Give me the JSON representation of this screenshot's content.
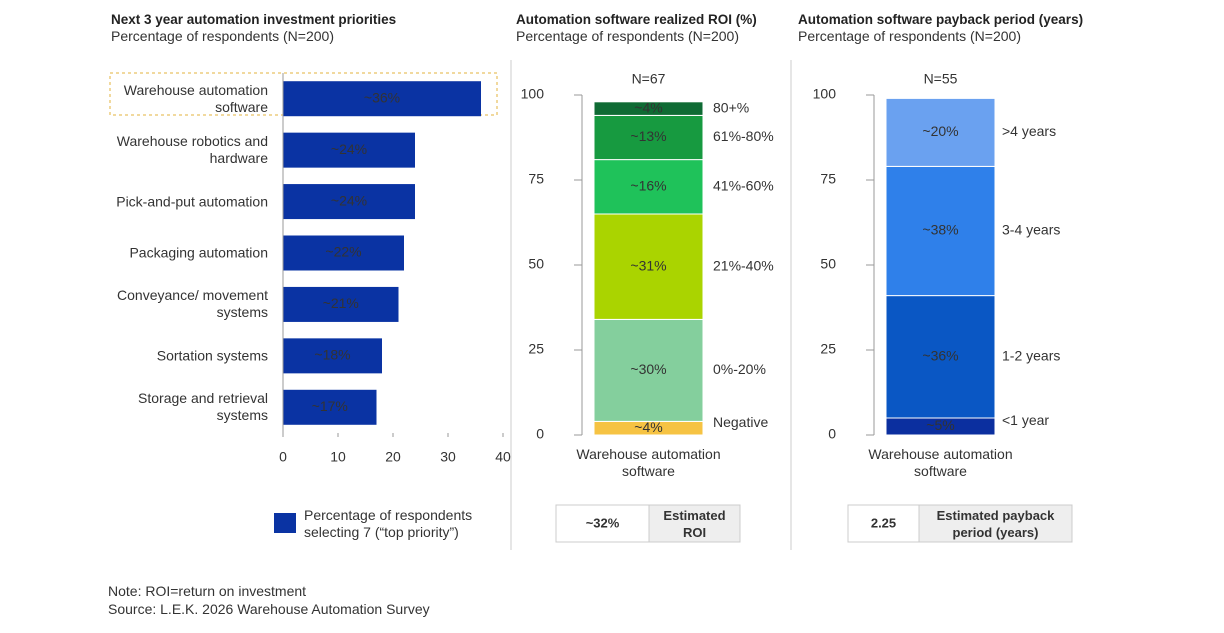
{
  "chart_data": [
    {
      "type": "hbar",
      "title": "Next 3 year automation investment priorities",
      "subtitle": "Percentage of respondents (N=200)",
      "categories": [
        "Warehouse automation software",
        "Warehouse robotics and hardware",
        "Pick-and-put automation",
        "Packaging automation",
        "Conveyance/ movement systems",
        "Sortation systems",
        "Storage and retrieval systems"
      ],
      "series": [
        {
          "name": "Percentage of respondents selecting 7 (“top priority”)",
          "color": "#0a33a3",
          "values": [
            36,
            24,
            24,
            22,
            21,
            18,
            17
          ],
          "value_labels": [
            "~36%",
            "~24%",
            "~24%",
            "~22%",
            "~21%",
            "~18%",
            "~17%"
          ]
        }
      ],
      "xlim": [
        0,
        40
      ],
      "xticks": [
        0,
        10,
        20,
        30,
        40
      ],
      "legend": "bottom"
    },
    {
      "type": "stacked_bar",
      "title": "Automation software realized ROI (%)",
      "subtitle": "Percentage of respondents (N=200)",
      "annotation": "N=67",
      "categories": [
        "Warehouse automation software"
      ],
      "series": [
        {
          "name": "Negative",
          "color": "#f6c343",
          "values": [
            4
          ],
          "value_labels": [
            "~4%"
          ]
        },
        {
          "name": "0%-20%",
          "color": "#84cf9d",
          "values": [
            30
          ],
          "value_labels": [
            "~30%"
          ]
        },
        {
          "name": "21%-40%",
          "color": "#aad400",
          "values": [
            31
          ],
          "value_labels": [
            "~31%"
          ]
        },
        {
          "name": "41%-60%",
          "color": "#1fc25a",
          "values": [
            16
          ],
          "value_labels": [
            "~16%"
          ]
        },
        {
          "name": "61%-80%",
          "color": "#179a40",
          "values": [
            13
          ],
          "value_labels": [
            "~13%"
          ]
        },
        {
          "name": "80+%",
          "color": "#0f6b34",
          "values": [
            4
          ],
          "value_labels": [
            "~4%"
          ]
        }
      ],
      "ylim": [
        0,
        100
      ],
      "yticks": [
        0,
        25,
        50,
        75,
        100
      ],
      "callout": {
        "value": "~32%",
        "label": "Estimated ROI"
      }
    },
    {
      "type": "stacked_bar",
      "title": "Automation software payback period (years)",
      "subtitle": "Percentage of respondents (N=200)",
      "annotation": "N=55",
      "categories": [
        "Warehouse automation software"
      ],
      "series": [
        {
          "name": "<1 year",
          "color": "#0b2f9f",
          "values": [
            5
          ],
          "value_labels": [
            "~5%"
          ]
        },
        {
          "name": "1-2 years",
          "color": "#0a57c4",
          "values": [
            36
          ],
          "value_labels": [
            "~36%"
          ]
        },
        {
          "name": "3-4 years",
          "color": "#2f80ea",
          "values": [
            38
          ],
          "value_labels": [
            "~38%"
          ]
        },
        {
          "name": ">4 years",
          "color": "#6aa1f0",
          "values": [
            20
          ],
          "value_labels": [
            "~20%"
          ]
        }
      ],
      "ylim": [
        0,
        100
      ],
      "yticks": [
        0,
        25,
        50,
        75,
        100
      ],
      "callout": {
        "value": 2.25,
        "label": "Estimated payback period (years)"
      }
    }
  ],
  "note": "Note: ROI=return on investment",
  "source": "Source: L.E.K. 2026 Warehouse Automation Survey"
}
